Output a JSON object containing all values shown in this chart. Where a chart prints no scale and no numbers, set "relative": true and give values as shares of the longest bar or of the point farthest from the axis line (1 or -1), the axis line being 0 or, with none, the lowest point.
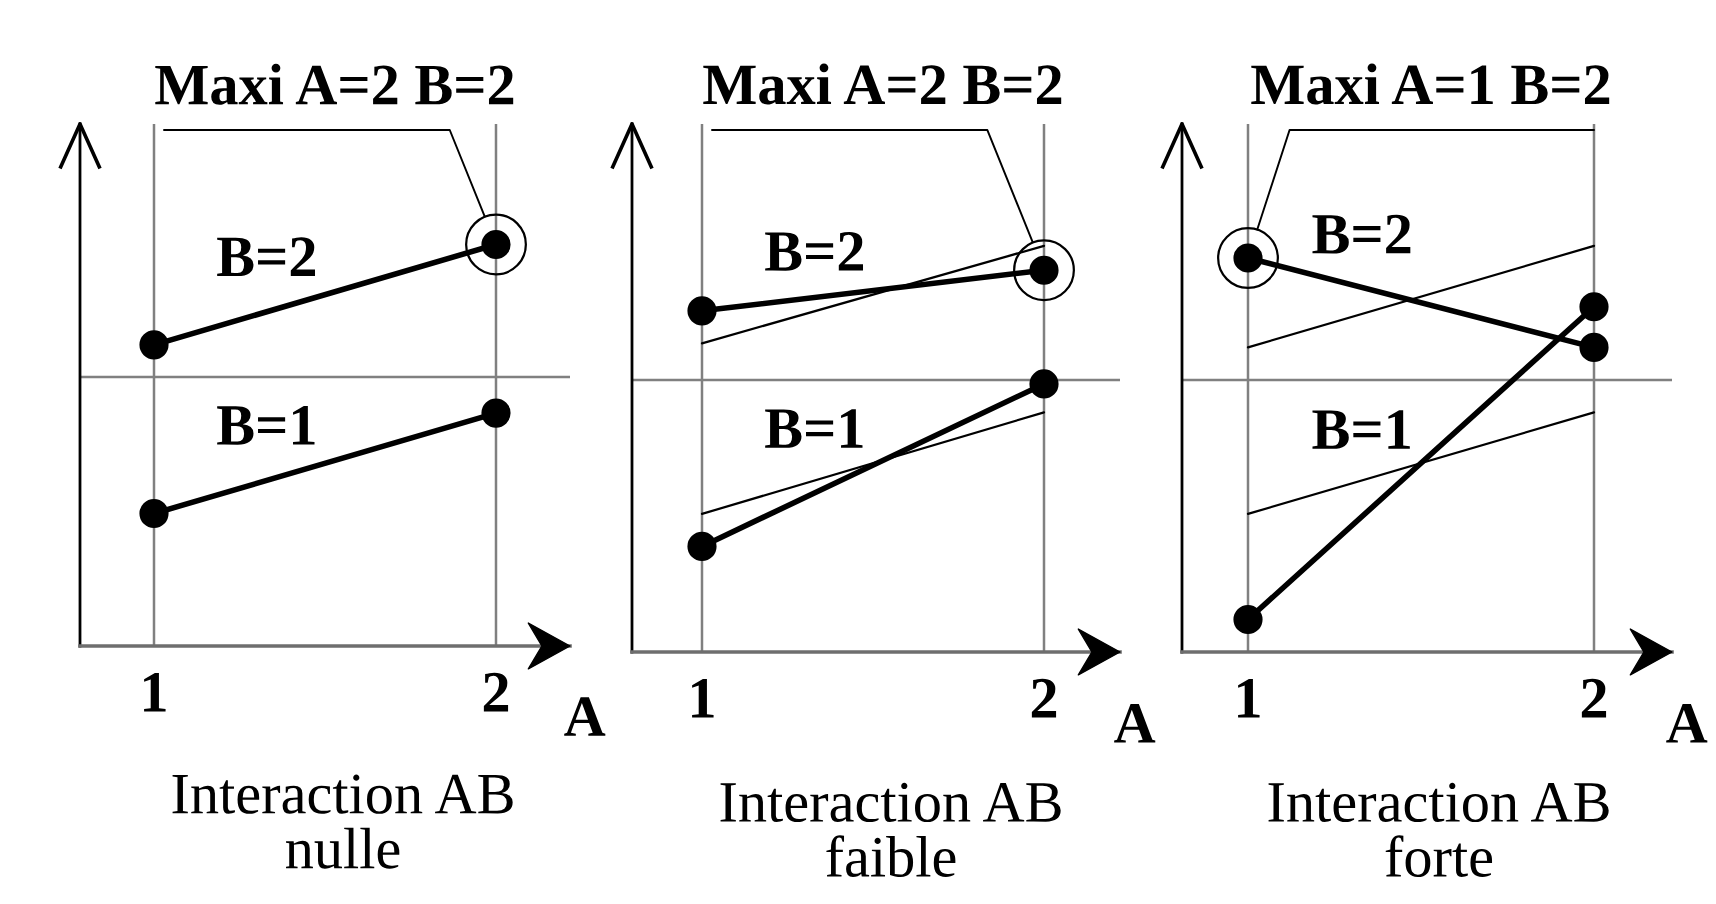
{
  "chart_data": [
    {
      "type": "line",
      "title": "Interaction AB\nnulle",
      "xlabel": "A",
      "categories": [
        "1",
        "2"
      ],
      "relative": true,
      "grid": "x",
      "marker": "circle",
      "series": [
        {
          "name": "B=2",
          "color": "#000000",
          "values": [
            0.75,
            1
          ]
        },
        {
          "name": "B=1",
          "color": "#000000",
          "values": [
            0.33,
            0.58
          ]
        }
      ],
      "ref_lines": [
        {
          "axis": "y",
          "value": 0.67,
          "color": "#808080"
        }
      ],
      "annotations": [
        {
          "text": "Maxi A=2 B=2",
          "x": "2",
          "y": 1
        }
      ]
    },
    {
      "type": "line",
      "title": "Interaction AB\nfaible",
      "xlabel": "A",
      "categories": [
        "1",
        "2"
      ],
      "relative": true,
      "grid": "x",
      "marker": "circle",
      "series": [
        {
          "color": "#000000",
          "marker": "none",
          "values": [
            0.76,
            1
          ]
        },
        {
          "color": "#000000",
          "marker": "none",
          "values": [
            0.34,
            0.59
          ]
        },
        {
          "name": "B=2",
          "color": "#000000",
          "values": [
            0.84,
            0.94
          ]
        },
        {
          "name": "B=1",
          "color": "#000000",
          "values": [
            0.26,
            0.66
          ]
        }
      ],
      "ref_lines": [
        {
          "axis": "y",
          "value": 0.67,
          "color": "#808080"
        }
      ],
      "annotations": [
        {
          "text": "Maxi A=2 B=2",
          "x": "2",
          "y": 0.94
        }
      ]
    },
    {
      "type": "line",
      "title": "Interaction AB\nforte",
      "xlabel": "A",
      "categories": [
        "1",
        "2"
      ],
      "relative": true,
      "grid": "x",
      "marker": "circle",
      "series": [
        {
          "color": "#000000",
          "marker": "none",
          "values": [
            0.75,
            1
          ]
        },
        {
          "color": "#000000",
          "marker": "none",
          "values": [
            0.34,
            0.59
          ]
        },
        {
          "name": "B=2",
          "color": "#000000",
          "values": [
            0.97,
            0.75
          ]
        },
        {
          "name": "B=1",
          "color": "#000000",
          "values": [
            0.08,
            0.85
          ]
        }
      ],
      "ref_lines": [
        {
          "axis": "y",
          "value": 0.67,
          "color": "#808080"
        }
      ],
      "annotations": [
        {
          "text": "Maxi A=1 B=2",
          "x": "1",
          "y": 0.97
        }
      ]
    }
  ]
}
